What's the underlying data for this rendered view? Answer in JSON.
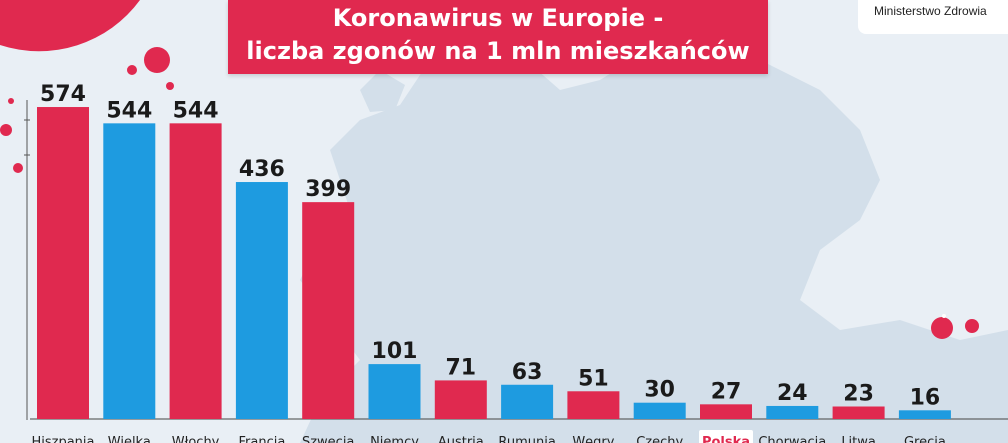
{
  "header": {
    "title_line1": "Koronawirus w Europie -",
    "title_line2": "liczba zgonów na 1 mln mieszkańców",
    "logo_text": "Ministerstwo Zdrowia"
  },
  "colors": {
    "red": "#e0294f",
    "blue": "#1e9be0",
    "background": "#e9eff5",
    "map": "#d3dfea"
  },
  "chart_data": {
    "type": "bar",
    "title": "Koronawirus w Europie - liczba zgonów na 1 mln mieszkańców",
    "categories": [
      "Hiszpania",
      "Wielka",
      "Włochy",
      "Francja",
      "Szwecja",
      "Niemcy",
      "Austria",
      "Rumunia",
      "Węgry",
      "Czechy",
      "Polska",
      "Chorwacja",
      "Litwa",
      "Grecja"
    ],
    "values": [
      574,
      544,
      544,
      436,
      399,
      101,
      71,
      63,
      51,
      30,
      27,
      24,
      23,
      16
    ],
    "bar_colors": [
      "red",
      "blue",
      "red",
      "blue",
      "red",
      "blue",
      "red",
      "blue",
      "red",
      "blue",
      "red",
      "blue",
      "red",
      "blue"
    ],
    "highlight_category": "Polska",
    "ylim": [
      0,
      600
    ],
    "grid": false,
    "data_labels": true
  }
}
